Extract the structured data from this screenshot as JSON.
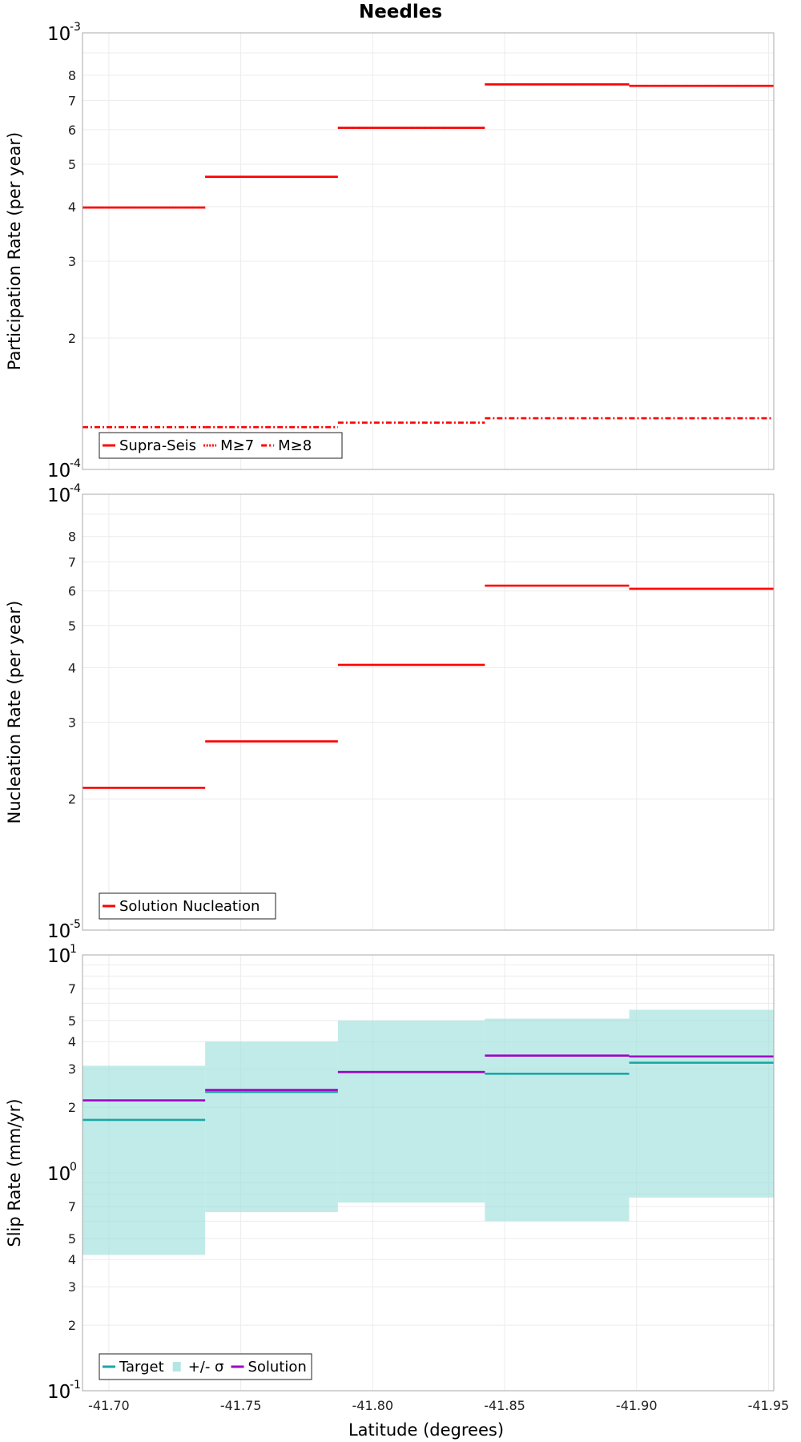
{
  "chart_data": {
    "title": "Needles",
    "xlabel": "Latitude (degrees)",
    "xlim": [
      -41.69,
      -41.952
    ],
    "x_ticks": [
      {
        "value": -41.7,
        "label": "-41.70"
      },
      {
        "value": -41.75,
        "label": "-41.75"
      },
      {
        "value": -41.8,
        "label": "-41.80"
      },
      {
        "value": -41.85,
        "label": "-41.85"
      },
      {
        "value": -41.9,
        "label": "-41.90"
      },
      {
        "value": -41.95,
        "label": "-41.95"
      }
    ],
    "segments": [
      [
        -41.69,
        -41.7365
      ],
      [
        -41.7365,
        -41.7868
      ],
      [
        -41.7868,
        -41.8425
      ],
      [
        -41.8425,
        -41.8972
      ],
      [
        -41.8972,
        -41.952
      ]
    ],
    "panels": [
      {
        "type": "step",
        "ylabel": "Participation Rate (per year)",
        "yscale": "log",
        "ylim": [
          0.0001,
          0.001
        ],
        "decade_labels": [
          {
            "value": 0.0001,
            "base": "10",
            "exp": "-4"
          },
          {
            "value": 0.001,
            "base": "10",
            "exp": "-3"
          }
        ],
        "minor_labels": [
          {
            "value": 0.0002,
            "label": "2"
          },
          {
            "value": 0.0003,
            "label": "3"
          },
          {
            "value": 0.0004,
            "label": "4"
          },
          {
            "value": 0.0005,
            "label": "5"
          },
          {
            "value": 0.0006,
            "label": "6"
          },
          {
            "value": 0.0007,
            "label": "7"
          },
          {
            "value": 0.0008,
            "label": "8"
          }
        ],
        "series": [
          {
            "name": "Supra-Seis",
            "color": "#ff0000",
            "style": "solid",
            "values": [
              0.000398,
              0.000468,
              0.000606,
              0.000762,
              0.000756
            ]
          },
          {
            "name": "M≥7",
            "color": "#ff0000",
            "style": "dotted",
            "values": [
              0.000398,
              0.000468,
              0.000606,
              0.000762,
              0.000756
            ]
          },
          {
            "name": "M≥8",
            "color": "#ff0000",
            "style": "dashdot",
            "values": [
              0.000125,
              0.000125,
              0.000128,
              0.000131,
              0.000131
            ]
          }
        ],
        "legend": {
          "position": "bottom-left",
          "entries": [
            "Supra-Seis",
            "M≥7",
            "M≥8"
          ]
        }
      },
      {
        "type": "step",
        "ylabel": "Nucleation Rate (per year)",
        "yscale": "log",
        "ylim": [
          1e-05,
          0.0001
        ],
        "decade_labels": [
          {
            "value": 1e-05,
            "base": "10",
            "exp": "-5"
          },
          {
            "value": 0.0001,
            "base": "10",
            "exp": "-4"
          }
        ],
        "minor_labels": [
          {
            "value": 2e-05,
            "label": "2"
          },
          {
            "value": 3e-05,
            "label": "3"
          },
          {
            "value": 4e-05,
            "label": "4"
          },
          {
            "value": 5e-05,
            "label": "5"
          },
          {
            "value": 6e-05,
            "label": "6"
          },
          {
            "value": 7e-05,
            "label": "7"
          },
          {
            "value": 8e-05,
            "label": "8"
          }
        ],
        "series": [
          {
            "name": "Solution Nucleation",
            "color": "#ff0000",
            "style": "solid",
            "values": [
              2.12e-05,
              2.71e-05,
              4.06e-05,
              6.17e-05,
              6.07e-05
            ]
          }
        ],
        "legend": {
          "position": "bottom-left",
          "entries": [
            "Solution Nucleation"
          ]
        }
      },
      {
        "type": "step",
        "ylabel": "Slip Rate (mm/yr)",
        "yscale": "log",
        "ylim": [
          0.1,
          10
        ],
        "decade_labels": [
          {
            "value": 0.1,
            "base": "10",
            "exp": "-1"
          },
          {
            "value": 1,
            "base": "10",
            "exp": "0"
          },
          {
            "value": 10,
            "base": "10",
            "exp": "1"
          }
        ],
        "minor_labels": [
          {
            "value": 0.2,
            "label": "2"
          },
          {
            "value": 0.3,
            "label": "3"
          },
          {
            "value": 0.4,
            "label": "4"
          },
          {
            "value": 0.5,
            "label": "5"
          },
          {
            "value": 0.7,
            "label": "7"
          },
          {
            "value": 2,
            "label": "2"
          },
          {
            "value": 3,
            "label": "3"
          },
          {
            "value": 4,
            "label": "4"
          },
          {
            "value": 5,
            "label": "5"
          },
          {
            "value": 7,
            "label": "7"
          }
        ],
        "band": {
          "name": "+/- σ",
          "color": "#a0e0dc",
          "opacity": 0.65,
          "low": [
            0.42,
            0.66,
            0.73,
            0.6,
            0.77
          ],
          "high": [
            3.1,
            4.0,
            5.0,
            5.1,
            5.6
          ]
        },
        "series": [
          {
            "name": "Target",
            "color": "#1aa7a7",
            "style": "solid",
            "values": [
              1.75,
              2.35,
              2.9,
              2.85,
              3.2
            ]
          },
          {
            "name": "Solution",
            "color": "#a000c8",
            "style": "solid",
            "values": [
              2.15,
              2.4,
              2.9,
              3.45,
              3.42
            ]
          }
        ],
        "legend": {
          "position": "bottom-left",
          "entries": [
            "Target",
            "+/- σ",
            "Solution"
          ]
        }
      }
    ]
  }
}
